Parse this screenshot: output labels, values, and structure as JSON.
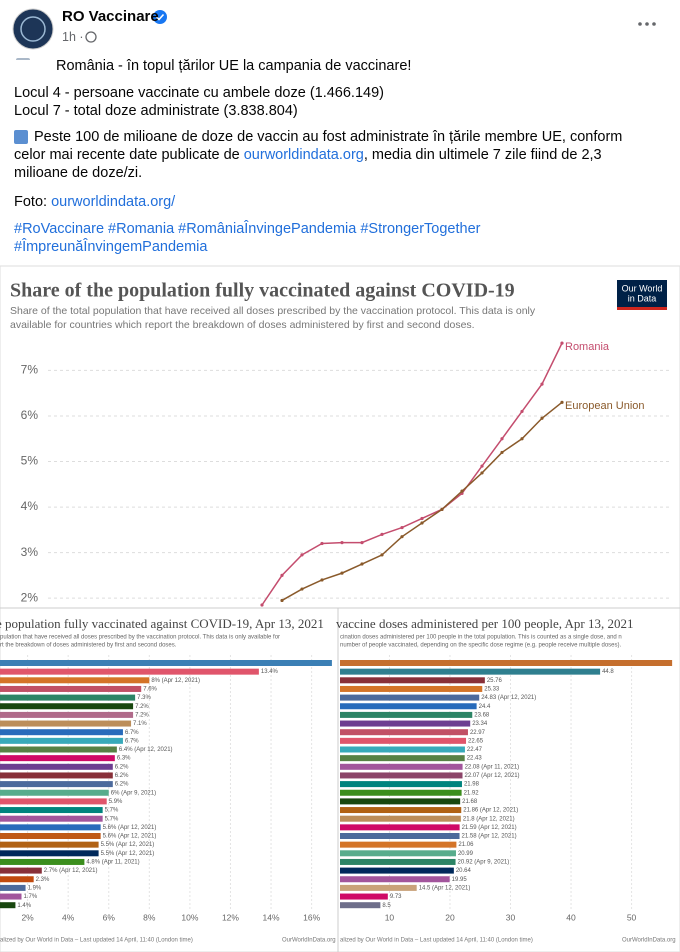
{
  "post": {
    "author": "RO Vaccinare",
    "time": "1h",
    "headline": "România - în topul țărilor UE la campania de vaccinare!",
    "ranks": [
      "Locul 4 - persoane vaccinate cu ambele doze (1.466.149)",
      "Locul 7 - total doze administrate (3.838.804)"
    ],
    "summary": {
      "before": "Peste 100 de milioane de doze de vaccin au fost administrate în țările membre UE, conform celor mai recente date publicate de ",
      "link": "ourworldindata.org",
      "after": ", media din ultimele 7 zile fiind de 2,3 milioane de doze/zi."
    },
    "photo": {
      "label": "Foto: ",
      "link": "ourworldindata.org/"
    },
    "hashtags": [
      "#RoVaccinare",
      "#Romania",
      "#RomâniaÎnvingePandemia",
      "#StrongerTogether",
      "#ÎmpreunăÎnvingemPandemia"
    ]
  },
  "chart_data": [
    {
      "type": "line",
      "title": "Share of the population fully vaccinated against COVID-19",
      "subtitle": [
        "Share of the total population that have received all doses prescribed by the vaccination protocol. This data is only",
        "available for countries which report the breakdown of doses administered by first and second doses."
      ],
      "logo": [
        "Our World",
        "in Data"
      ],
      "ylim": [
        1.85,
        7.8
      ],
      "yticks": [
        {
          "value": 2,
          "label": "2%"
        },
        {
          "value": 3,
          "label": "3%"
        },
        {
          "value": 4,
          "label": "4%"
        },
        {
          "value": 5,
          "label": "5%"
        },
        {
          "value": 6,
          "label": "6%"
        },
        {
          "value": 7,
          "label": "7%"
        }
      ],
      "grid": true,
      "series": [
        {
          "name": "Romania",
          "color": "#c44d6e",
          "values": [
            1.85,
            2.5,
            2.95,
            3.2,
            3.22,
            3.22,
            3.4,
            3.55,
            3.75,
            3.95,
            4.3,
            4.9,
            5.5,
            6.1,
            6.7,
            7.6
          ]
        },
        {
          "name": "European Union",
          "color": "#8a5a2b",
          "values": [
            null,
            1.95,
            2.2,
            2.4,
            2.55,
            2.75,
            2.95,
            3.35,
            3.65,
            3.95,
            4.35,
            4.75,
            5.2,
            5.5,
            5.95,
            6.3
          ]
        }
      ]
    },
    {
      "type": "bar",
      "title": "e population fully vaccinated against COVID-19, Apr 13, 2021",
      "subtitle": [
        "pulation that have received all doses prescribed by the vaccination protocol. This data is only available for",
        "rt the breakdown of doses administered by first and second doses."
      ],
      "values": [
        17,
        13.4,
        8,
        7.6,
        7.3,
        7.2,
        7.2,
        7.1,
        6.7,
        6.7,
        6.4,
        6.3,
        6.2,
        6.2,
        6.2,
        6,
        5.9,
        5.7,
        5.7,
        5.6,
        5.6,
        5.5,
        5.5,
        4.8,
        2.7,
        2.3,
        1.9,
        1.7,
        1.4
      ],
      "value_labels": [
        null,
        "13.4%",
        "8% (Apr 12, 2021)",
        "7.6%",
        "7.3%",
        "7.2%",
        "7.2%",
        "7.1%",
        "6.7%",
        "6.7%",
        "6.4% (Apr 12, 2021)",
        "6.3%",
        "6.2%",
        "6.2%",
        "6.2%",
        "6% (Apr 9, 2021)",
        "5.9%",
        "5.7%",
        "5.7%",
        "5.6% (Apr 12, 2021)",
        "5.6% (Apr 12, 2021)",
        "5.5% (Apr 12, 2021)",
        "5.5% (Apr 12, 2021)",
        "4.8% (Apr 11, 2021)",
        "2.7% (Apr 12, 2021)",
        "2.3%",
        "1.9%",
        "1.7%",
        "1.4%"
      ],
      "colors": [
        "#3b7fb5",
        "#e0556b",
        "#d47428",
        "#c15065",
        "#2c8465",
        "#18470f",
        "#b06a8a",
        "#bc8e5a",
        "#286bbb",
        "#38aaba",
        "#578145",
        "#cf0a66",
        "#6d3e91",
        "#883039",
        "#4c6a9c",
        "#58ac8c",
        "#e0556b",
        "#00847e",
        "#a2559c",
        "#286bbb",
        "#c05917",
        "#b16214",
        "#00295b",
        "#3b8e1d",
        "#883039",
        "#c14a0e",
        "#4c6a9c",
        "#a2559c",
        "#18470f"
      ],
      "xlim": [
        0.64,
        17.3
      ],
      "xticks": [
        {
          "value": 2,
          "label": "2%"
        },
        {
          "value": 4,
          "label": "4%"
        },
        {
          "value": 6,
          "label": "6%"
        },
        {
          "value": 8,
          "label": "8%"
        },
        {
          "value": 10,
          "label": "10%"
        },
        {
          "value": 12,
          "label": "12%"
        },
        {
          "value": 14,
          "label": "14%"
        },
        {
          "value": 16,
          "label": "16%"
        }
      ],
      "footer": "alized by Our World in Data – Last updated 14 April, 11:40 (London time)",
      "source": "OurWorldInData.org"
    },
    {
      "type": "bar",
      "title": "vaccine doses administered per 100 people, Apr 13, 2021",
      "subtitle": [
        "cination doses administered per 100 people in the total population. This is counted as a single dose, and n",
        "number of people vaccinated, depending on the specific dose regime (e.g. people receive multiple doses)."
      ],
      "values": [
        56.7,
        44.8,
        25.76,
        25.33,
        24.83,
        24.4,
        23.68,
        23.34,
        22.97,
        22.65,
        22.47,
        22.43,
        22.08,
        22.07,
        21.98,
        21.92,
        21.68,
        21.86,
        21.8,
        21.59,
        21.58,
        21.06,
        20.99,
        20.92,
        20.64,
        19.95,
        14.5,
        9.73,
        8.5
      ],
      "value_labels": [
        null,
        "44.8",
        "25.76",
        "25.33",
        "24.83 (Apr 12, 2021)",
        "24.4",
        "23.68",
        "23.34",
        "22.97",
        "22.65",
        "22.47",
        "22.43",
        "22.08 (Apr 11, 2021)",
        "22.07 (Apr 12, 2021)",
        "21.98",
        "21.92",
        "21.68",
        "21.86 (Apr 12, 2021)",
        "21.8 (Apr 12, 2021)",
        "21.59 (Apr 12, 2021)",
        "21.58 (Apr 12, 2021)",
        "21.06",
        "20.99",
        "20.92 (Apr 9, 2021)",
        "20.64",
        "19.95",
        "14.5 (Apr 12, 2021)",
        "9.73",
        "8.5"
      ],
      "colors": [
        "#c56f2e",
        "#2f7f8f",
        "#883039",
        "#d47428",
        "#4c6a9c",
        "#286bbb",
        "#2c8465",
        "#6d3e91",
        "#c15065",
        "#e0556b",
        "#38aaba",
        "#578145",
        "#a2559c",
        "#8c4569",
        "#00847e",
        "#3b8e1d",
        "#18470f",
        "#b16214",
        "#bc8e5a",
        "#cf0a66",
        "#4c6a9c",
        "#d47428",
        "#58ac8c",
        "#2c8465",
        "#00295b",
        "#a2559c",
        "#c9a27a",
        "#cf0a66",
        "#6e6e8a"
      ],
      "xlim": [
        1.5,
        58
      ],
      "xticks": [
        10,
        20,
        30,
        40,
        50
      ],
      "footer": "alized by Our World in Data – Last updated 14 April, 11:40 (London time)",
      "source": "OurWorldInData.org"
    }
  ]
}
